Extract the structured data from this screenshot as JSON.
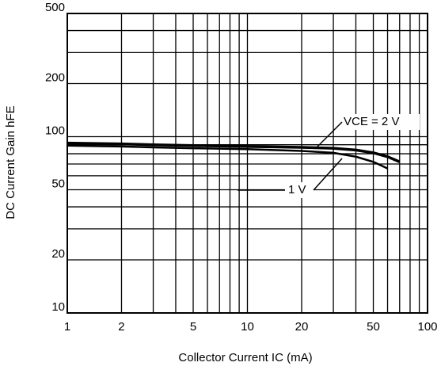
{
  "chart_data": {
    "type": "line",
    "x_label": "Collector Current  IC (mA)",
    "y_label": "DC Current Gain  hFE",
    "log_x": true,
    "log_y": true,
    "grid": true,
    "xlim": [
      1,
      100
    ],
    "ylim": [
      10,
      500
    ],
    "xticks": [
      1,
      2,
      5,
      10,
      20,
      50,
      100
    ],
    "yticks": [
      10,
      20,
      50,
      100,
      200,
      500
    ],
    "x_minor_grid": [
      3,
      4,
      6,
      7,
      8,
      9,
      30,
      40,
      60,
      70,
      80,
      90
    ],
    "y_minor_grid": [
      30,
      40,
      60,
      70,
      80,
      90,
      300,
      400
    ],
    "x": [
      1,
      2,
      3,
      5,
      10,
      20,
      30,
      40,
      50,
      60,
      70
    ],
    "series": [
      {
        "name": "VCE = 2 V",
        "color": "#000000",
        "values": [
          92,
          91,
          90,
          89,
          88,
          87,
          86,
          84,
          81,
          77,
          72
        ]
      },
      {
        "name": "1 V",
        "color": "#000000",
        "values": [
          89,
          88,
          87,
          86,
          85,
          83,
          81,
          77,
          72,
          66,
          null
        ]
      }
    ]
  }
}
